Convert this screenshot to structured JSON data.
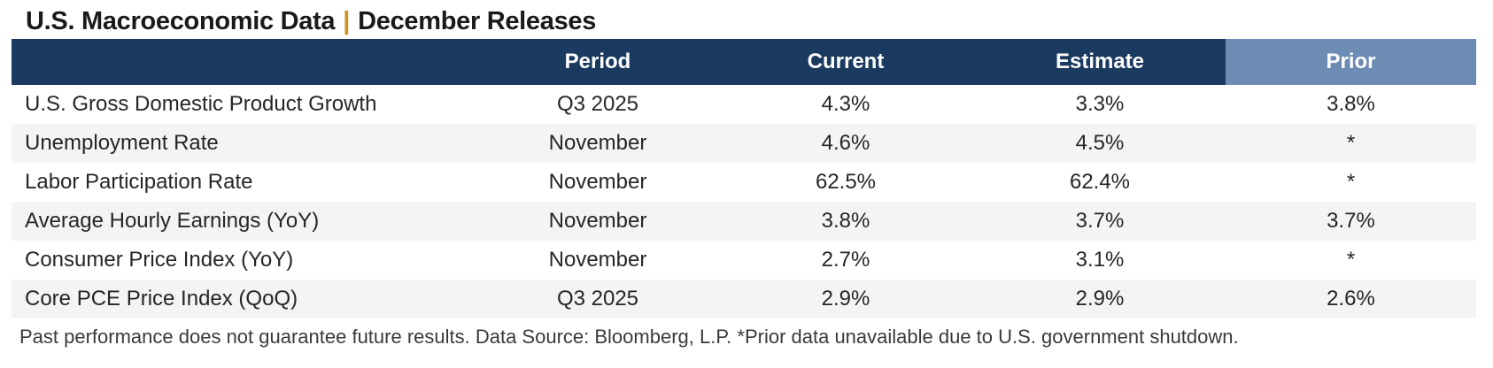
{
  "title": {
    "left": "U.S. Macroeconomic Data",
    "separator": "|",
    "right": "December Releases"
  },
  "colors": {
    "header_navy": "#1b3a5f",
    "prior_column_blue": "#6d8cb4",
    "row_stripe_gray": "#f4f4f4",
    "title_separator_gold": "#c9961e"
  },
  "chart_data": {
    "type": "table",
    "title": "U.S. Macroeconomic Data | December Releases",
    "columns": [
      "",
      "Period",
      "Current",
      "Estimate",
      "Prior"
    ],
    "rows": [
      [
        "U.S. Gross Domestic Product Growth",
        "Q3 2025",
        "4.3%",
        "3.3%",
        "3.8%"
      ],
      [
        "Unemployment Rate",
        "November",
        "4.6%",
        "4.5%",
        "*"
      ],
      [
        "Labor Participation Rate",
        "November",
        "62.5%",
        "62.4%",
        "*"
      ],
      [
        "Average Hourly Earnings (YoY)",
        "November",
        "3.8%",
        "3.7%",
        "3.7%"
      ],
      [
        "Consumer Price Index (YoY)",
        "November",
        "2.7%",
        "3.1%",
        "*"
      ],
      [
        "Core PCE Price Index (QoQ)",
        "Q3 2025",
        "2.9%",
        "2.9%",
        "2.6%"
      ]
    ],
    "footnote": "Past performance does not guarantee future results. Data Source: Bloomberg, L.P. *Prior data unavailable due to U.S. government shutdown."
  }
}
